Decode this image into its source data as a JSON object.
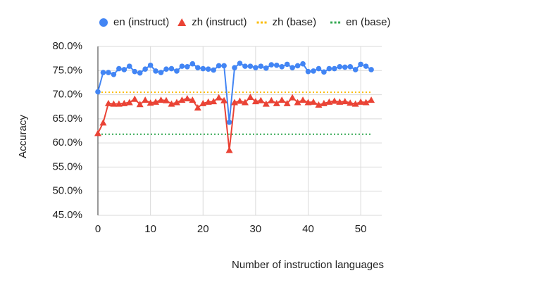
{
  "chart_data": {
    "type": "line",
    "x_label": "Number of instruction languages",
    "y_label": "Accuracy",
    "x": [
      0,
      1,
      2,
      3,
      4,
      5,
      6,
      7,
      8,
      9,
      10,
      11,
      12,
      13,
      14,
      15,
      16,
      17,
      18,
      19,
      20,
      21,
      22,
      23,
      24,
      25,
      26,
      27,
      28,
      29,
      30,
      31,
      32,
      33,
      34,
      35,
      36,
      37,
      38,
      39,
      40,
      41,
      42,
      43,
      44,
      45,
      46,
      47,
      48,
      49,
      50,
      51,
      52
    ],
    "series": [
      {
        "name": "en (instruct)",
        "color": "#4285f4",
        "marker": "circle",
        "values": [
          70.6,
          74.6,
          74.6,
          74.2,
          75.4,
          75.2,
          75.9,
          74.8,
          74.5,
          75.3,
          76.1,
          74.9,
          74.6,
          75.3,
          75.4,
          74.9,
          75.9,
          75.8,
          76.4,
          75.6,
          75.4,
          75.3,
          75.1,
          76.0,
          76.0,
          64.3,
          75.6,
          76.5,
          75.9,
          75.9,
          75.6,
          75.9,
          75.5,
          76.2,
          76.1,
          75.8,
          76.3,
          75.6,
          76.0,
          76.4,
          74.8,
          74.9,
          75.4,
          74.7,
          75.4,
          75.4,
          75.8,
          75.7,
          75.8,
          75.2,
          76.3,
          75.9,
          75.2
        ]
      },
      {
        "name": "zh (instruct)",
        "color": "#ea4335",
        "marker": "triangle",
        "values": [
          62.0,
          64.2,
          68.2,
          68.1,
          68.1,
          68.2,
          68.4,
          69.1,
          68.0,
          68.9,
          68.3,
          68.5,
          68.9,
          68.8,
          68.1,
          68.4,
          68.9,
          69.2,
          68.9,
          67.3,
          68.2,
          68.5,
          68.6,
          69.4,
          68.8,
          58.5,
          68.4,
          68.7,
          68.4,
          69.5,
          68.6,
          68.8,
          68.1,
          68.8,
          68.2,
          68.9,
          68.2,
          69.4,
          68.4,
          68.9,
          68.4,
          68.5,
          67.9,
          68.2,
          68.5,
          68.7,
          68.5,
          68.6,
          68.3,
          68.1,
          68.5,
          68.4,
          68.9
        ]
      }
    ],
    "reference_lines": [
      {
        "name": "zh (base)",
        "color": "#fbbc04",
        "value": 70.5
      },
      {
        "name": "en (base)",
        "color": "#34a853",
        "value": 61.8
      }
    ],
    "xlim": [
      0,
      54
    ],
    "xticks": [
      0,
      10,
      20,
      30,
      40,
      50
    ],
    "ylim": [
      45,
      80
    ],
    "yticks": [
      {
        "value": 45,
        "label": "45.0%"
      },
      {
        "value": 50,
        "label": "50.0%"
      },
      {
        "value": 55,
        "label": "55.0%"
      },
      {
        "value": 60,
        "label": "60.0%"
      },
      {
        "value": 65,
        "label": "65.0%"
      },
      {
        "value": 70,
        "label": "70.0%"
      },
      {
        "value": 75,
        "label": "75.0%"
      },
      {
        "value": 80,
        "label": "80.0%"
      }
    ],
    "grid": true,
    "legend": "top"
  }
}
